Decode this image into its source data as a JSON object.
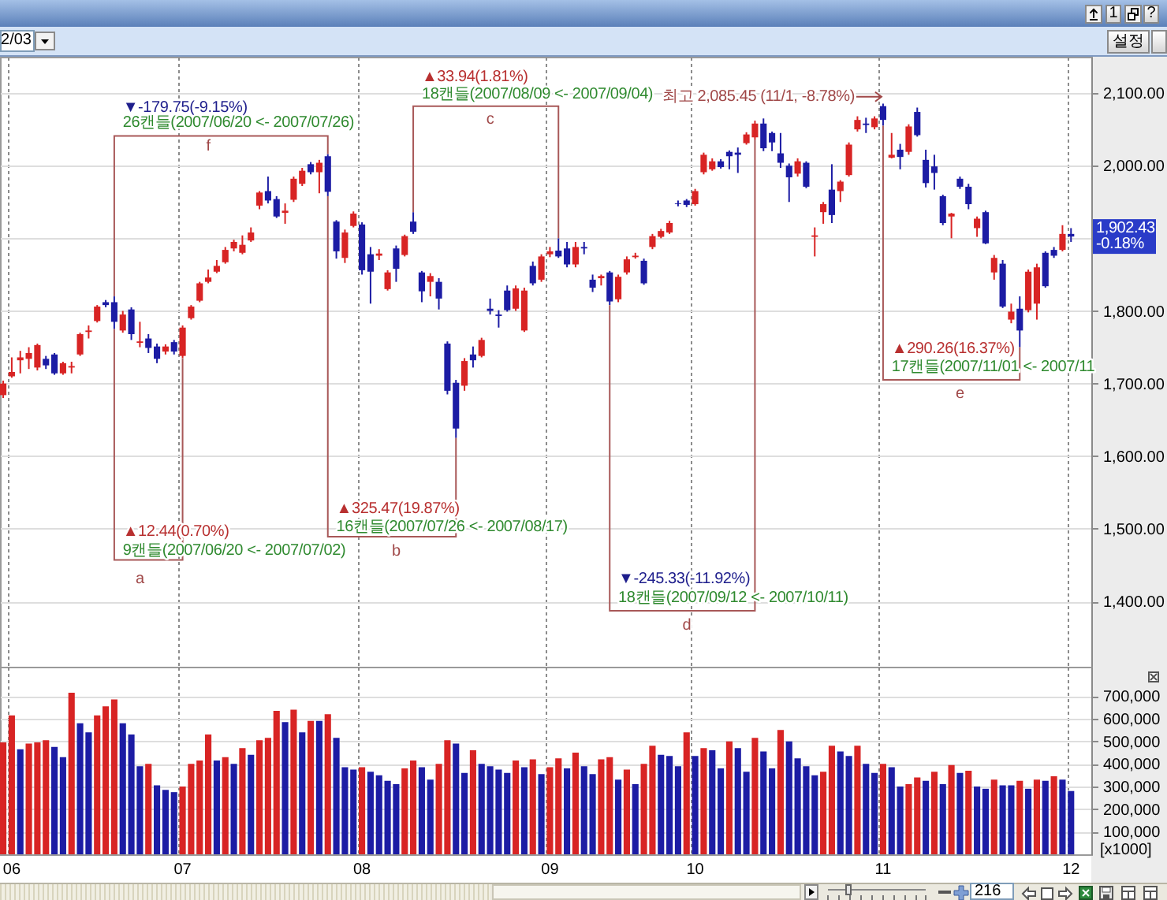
{
  "chart_data": [
    {
      "type": "candlestick",
      "categories": [
        null,
        "06",
        null,
        null,
        null,
        null,
        null,
        null,
        null,
        null,
        null,
        null,
        null,
        null,
        null,
        null,
        null,
        null,
        null,
        null,
        null,
        "07",
        null,
        null,
        null,
        null,
        null,
        null,
        null,
        null,
        null,
        null,
        null,
        null,
        null,
        null,
        null,
        null,
        null,
        null,
        null,
        null,
        "08",
        null,
        null,
        null,
        null,
        null,
        null,
        null,
        null,
        null,
        null,
        null,
        null,
        null,
        null,
        null,
        null,
        null,
        null,
        null,
        null,
        null,
        "09",
        null,
        null,
        null,
        null,
        null,
        null,
        null,
        null,
        null,
        null,
        null,
        null,
        null,
        null,
        null,
        null,
        "10",
        null,
        null,
        null,
        null,
        null,
        null,
        null,
        null,
        null,
        null,
        null,
        null,
        null,
        null,
        null,
        null,
        null,
        null,
        null,
        null,
        null,
        "11",
        null,
        null,
        null,
        null,
        null,
        null,
        null,
        null,
        null,
        null,
        null,
        null,
        null,
        null,
        null,
        null,
        null,
        null,
        null,
        null,
        null,
        "12"
      ],
      "ohlc": [
        [
          1684,
          1704,
          1680,
          1700
        ],
        [
          1710,
          1736,
          1708,
          1716
        ],
        [
          1732,
          1745,
          1714,
          1736
        ],
        [
          1734,
          1750,
          1720,
          1742
        ],
        [
          1722,
          1755,
          1718,
          1753
        ],
        [
          1734,
          1738,
          1720,
          1725
        ],
        [
          1740,
          1742,
          1712,
          1714
        ],
        [
          1714,
          1730,
          1712,
          1728
        ],
        [
          1722,
          1730,
          1714,
          1724
        ],
        [
          1740,
          1770,
          1738,
          1768
        ],
        [
          1771,
          1780,
          1762,
          1773
        ],
        [
          1786,
          1808,
          1784,
          1806
        ],
        [
          1812,
          1815,
          1805,
          1808
        ],
        [
          1812,
          1820,
          1775,
          1785
        ],
        [
          1773,
          1800,
          1770,
          1795
        ],
        [
          1802,
          1805,
          1760,
          1768
        ],
        [
          1756,
          1785,
          1750,
          1758
        ],
        [
          1762,
          1768,
          1742,
          1749
        ],
        [
          1751,
          1755,
          1728,
          1734
        ],
        [
          1744,
          1754,
          1740,
          1751
        ],
        [
          1757,
          1760,
          1740,
          1744
        ],
        [
          1738,
          1780,
          1735,
          1777
        ],
        [
          1790,
          1808,
          1788,
          1806
        ],
        [
          1814,
          1840,
          1812,
          1838
        ],
        [
          1840,
          1857,
          1838,
          1846
        ],
        [
          1854,
          1870,
          1852,
          1862
        ],
        [
          1867,
          1888,
          1865,
          1884
        ],
        [
          1886,
          1898,
          1882,
          1895
        ],
        [
          1880,
          1904,
          1878,
          1891
        ],
        [
          1897,
          1915,
          1895,
          1908
        ],
        [
          1945,
          1965,
          1940,
          1963
        ],
        [
          1965,
          1985,
          1948,
          1952
        ],
        [
          1954,
          1958,
          1928,
          1930
        ],
        [
          1935,
          1948,
          1920,
          1938
        ],
        [
          1953,
          1985,
          1950,
          1982
        ],
        [
          1975,
          1997,
          1972,
          1993
        ],
        [
          2002,
          2005,
          1988,
          1991
        ],
        [
          1991,
          2008,
          1962,
          2004
        ],
        [
          2013,
          2016,
          1958,
          1964
        ],
        [
          1923,
          1925,
          1872,
          1882
        ],
        [
          1873,
          1912,
          1866,
          1908
        ],
        [
          1917,
          1937,
          1915,
          1934
        ],
        [
          1919,
          1922,
          1850,
          1856
        ],
        [
          1878,
          1888,
          1810,
          1854
        ],
        [
          1876,
          1885,
          1870,
          1879
        ],
        [
          1830,
          1856,
          1828,
          1853
        ],
        [
          1886,
          1890,
          1840,
          1858
        ],
        [
          1877,
          1905,
          1875,
          1903
        ],
        [
          1923,
          1936,
          1906,
          1909
        ],
        [
          1853,
          1855,
          1812,
          1827
        ],
        [
          1840,
          1852,
          1820,
          1848
        ],
        [
          1840,
          1845,
          1802,
          1817
        ],
        [
          1755,
          1758,
          1685,
          1690
        ],
        [
          1701,
          1705,
          1625,
          1638
        ],
        [
          1697,
          1735,
          1690,
          1731
        ],
        [
          1740,
          1751,
          1722,
          1732
        ],
        [
          1738,
          1763,
          1736,
          1760
        ],
        [
          1803,
          1817,
          1795,
          1800
        ],
        [
          1795,
          1801,
          1777,
          1793
        ],
        [
          1828,
          1835,
          1799,
          1801
        ],
        [
          1803,
          1835,
          1800,
          1831
        ],
        [
          1773,
          1832,
          1771,
          1828
        ],
        [
          1862,
          1868,
          1835,
          1838
        ],
        [
          1843,
          1878,
          1840,
          1875
        ],
        [
          1878,
          1888,
          1874,
          1882
        ],
        [
          1883,
          1900,
          1873,
          1875
        ],
        [
          1886,
          1895,
          1860,
          1864
        ],
        [
          1864,
          1895,
          1860,
          1888
        ],
        [
          1888,
          1895,
          1878,
          1886
        ],
        [
          1843,
          1850,
          1826,
          1832
        ],
        [
          1845,
          1850,
          1835,
          1848
        ],
        [
          1853,
          1855,
          1808,
          1813
        ],
        [
          1816,
          1850,
          1812,
          1847
        ],
        [
          1853,
          1875,
          1850,
          1871
        ],
        [
          1874,
          1880,
          1872,
          1876
        ],
        [
          1869,
          1872,
          1836,
          1838
        ],
        [
          1888,
          1906,
          1885,
          1903
        ],
        [
          1902,
          1913,
          1900,
          1910
        ],
        [
          1908,
          1924,
          1906,
          1921
        ],
        [
          1948,
          1952,
          1944,
          1947
        ],
        [
          1952,
          1954,
          1943,
          1946
        ],
        [
          1947,
          1968,
          1945,
          1965
        ],
        [
          1991,
          2018,
          1988,
          2015
        ],
        [
          1995,
          2010,
          1993,
          2006
        ],
        [
          2006,
          2009,
          1996,
          1998
        ],
        [
          2019,
          2021,
          1995,
          2013
        ],
        [
          2018,
          2025,
          1990,
          2015
        ],
        [
          2031,
          2046,
          2029,
          2043
        ],
        [
          2039,
          2062,
          2036,
          2058
        ],
        [
          2058,
          2065,
          2020,
          2024
        ],
        [
          2045,
          2047,
          2020,
          2032
        ],
        [
          2017,
          2045,
          1997,
          2004
        ],
        [
          2000,
          2003,
          1950,
          1984
        ],
        [
          1989,
          2010,
          1985,
          2006
        ],
        [
          2004,
          2006,
          1969,
          1971
        ],
        [
          1902,
          1915,
          1875,
          1904
        ],
        [
          1936,
          1950,
          1920,
          1947
        ],
        [
          1967,
          2002,
          1921,
          1932
        ],
        [
          1965,
          1980,
          1950,
          1978
        ],
        [
          1987,
          2032,
          1985,
          2029
        ],
        [
          2050,
          2068,
          2047,
          2063
        ],
        [
          2058,
          2066,
          2045,
          2056
        ],
        [
          2053,
          2068,
          2050,
          2065
        ],
        [
          2082,
          2085.45,
          2055,
          2063
        ],
        [
          2011,
          2045,
          2010,
          2015
        ],
        [
          2022,
          2030,
          1995,
          2012
        ],
        [
          2019,
          2057,
          2015,
          2054
        ],
        [
          2074,
          2080,
          2040,
          2042
        ],
        [
          2008,
          2022,
          1970,
          1976
        ],
        [
          1999,
          2015,
          1967,
          1990
        ],
        [
          1958,
          1960,
          1918,
          1921
        ],
        [
          1930,
          1935,
          1900,
          1934
        ],
        [
          1982,
          1985,
          1968,
          1971
        ],
        [
          1971,
          1975,
          1940,
          1947
        ],
        [
          1914,
          1930,
          1902,
          1927
        ],
        [
          1936,
          1938,
          1892,
          1893
        ],
        [
          1853,
          1877,
          1843,
          1873
        ],
        [
          1865,
          1870,
          1804,
          1806
        ],
        [
          1788,
          1810,
          1783,
          1799
        ],
        [
          1803,
          1820,
          1750,
          1773
        ],
        [
          1801,
          1857,
          1798,
          1854
        ],
        [
          1810,
          1865,
          1788,
          1860
        ],
        [
          1880,
          1882,
          1832,
          1834
        ],
        [
          1884,
          1888,
          1873,
          1876
        ],
        [
          1884,
          1918,
          1882,
          1906
        ],
        [
          1906,
          1914,
          1895,
          1902.43
        ]
      ],
      "colors": [
        "#d82424",
        "#d82424",
        "#d82424",
        "#d82424",
        "#d82424",
        "#1c1ca4",
        "#1c1ca4",
        "#d82424",
        "#d82424",
        "#d82424",
        "#d82424",
        "#d82424",
        "#1c1ca4",
        "#1c1ca4",
        "#d82424",
        "#1c1ca4",
        "#d82424",
        "#1c1ca4",
        "#1c1ca4",
        "#d82424",
        "#1c1ca4",
        "#d82424",
        "#d82424",
        "#d82424",
        "#d82424",
        "#d82424",
        "#d82424",
        "#d82424",
        "#d82424",
        "#d82424",
        "#d82424",
        "#1c1ca4",
        "#1c1ca4",
        "#d82424",
        "#d82424",
        "#d82424",
        "#1c1ca4",
        "#d82424",
        "#1c1ca4",
        "#1c1ca4",
        "#d82424",
        "#d82424",
        "#1c1ca4",
        "#1c1ca4",
        "#d82424",
        "#d82424",
        "#1c1ca4",
        "#d82424",
        "#1c1ca4",
        "#1c1ca4",
        "#d82424",
        "#1c1ca4",
        "#1c1ca4",
        "#1c1ca4",
        "#d82424",
        "#1c1ca4",
        "#d82424",
        "#1c1ca4",
        "#1c1ca4",
        "#1c1ca4",
        "#d82424",
        "#d82424",
        "#1c1ca4",
        "#d82424",
        "#d82424",
        "#1c1ca4",
        "#1c1ca4",
        "#d82424",
        "#1c1ca4",
        "#1c1ca4",
        "#d82424",
        "#1c1ca4",
        "#d82424",
        "#d82424",
        "#d82424",
        "#1c1ca4",
        "#d82424",
        "#d82424",
        "#d82424",
        "#1c1ca4",
        "#1c1ca4",
        "#d82424",
        "#d82424",
        "#d82424",
        "#1c1ca4",
        "#1c1ca4",
        "#1c1ca4",
        "#d82424",
        "#d82424",
        "#1c1ca4",
        "#1c1ca4",
        "#1c1ca4",
        "#1c1ca4",
        "#d82424",
        "#1c1ca4",
        "#d82424",
        "#d82424",
        "#1c1ca4",
        "#d82424",
        "#d82424",
        "#d82424",
        "#1c1ca4",
        "#d82424",
        "#1c1ca4",
        "#d82424",
        "#1c1ca4",
        "#d82424",
        "#1c1ca4",
        "#1c1ca4",
        "#1c1ca4",
        "#1c1ca4",
        "#d82424",
        "#1c1ca4",
        "#1c1ca4",
        "#d82424",
        "#1c1ca4",
        "#d82424",
        "#1c1ca4",
        "#d82424",
        "#1c1ca4",
        "#d82424",
        "#d82424",
        "#1c1ca4",
        "#1c1ca4",
        "#d82424",
        "#1c1ca4"
      ],
      "ylim": [
        1310,
        2150
      ],
      "yticks": [
        {
          "value": 1400,
          "label": "1,400.00"
        },
        {
          "value": 1500,
          "label": "1,500.00"
        },
        {
          "value": 1600,
          "label": "1,600.00"
        },
        {
          "value": 1700,
          "label": "1,700.00"
        },
        {
          "value": 1800,
          "label": "1,800.00"
        },
        {
          "value": 1900,
          "label": null
        },
        {
          "value": 2000,
          "label": "2,000.00"
        },
        {
          "value": 2100,
          "label": "2,100.00"
        }
      ],
      "grid": true,
      "tick_labels": "y",
      "annotations": [
        "▼-179.75(-9.15%)",
        "26캔들(2007/06/20 <- 2007/07/26)",
        "f",
        "▲33.94(1.81%)",
        "18캔들(2007/08/09 <- 2007/09/04)",
        "c",
        "최고 2,085.45 (11/1, -8.78%)",
        "▲12.44(0.70%)",
        "9캔들(2007/06/20 <- 2007/07/02)",
        "a",
        "▲325.47(19.87%)",
        "16캔들(2007/07/26 <- 2007/08/17)",
        "b",
        "▼-245.33(-11.92%)",
        "18캔들(2007/09/12 <- 2007/10/11)",
        "d",
        "▲290.26(16.37%)",
        "17캔들(2007/11/01 <- 2007/11",
        "e",
        {
          "text": "1,902.43",
          "y": 1902.43
        },
        "-0.18%",
        "2/03",
        "1",
        "?",
        "설정"
      ]
    },
    {
      "type": "bar",
      "categories": [
        null,
        "06",
        null,
        null,
        null,
        null,
        null,
        null,
        null,
        null,
        null,
        null,
        null,
        null,
        null,
        null,
        null,
        null,
        null,
        null,
        null,
        "07",
        null,
        null,
        null,
        null,
        null,
        null,
        null,
        null,
        null,
        null,
        null,
        null,
        null,
        null,
        null,
        null,
        null,
        null,
        null,
        null,
        "08",
        null,
        null,
        null,
        null,
        null,
        null,
        null,
        null,
        null,
        null,
        null,
        null,
        null,
        null,
        null,
        null,
        null,
        null,
        null,
        null,
        null,
        "09",
        null,
        null,
        null,
        null,
        null,
        null,
        null,
        null,
        null,
        null,
        null,
        null,
        null,
        null,
        null,
        null,
        "10",
        null,
        null,
        null,
        null,
        null,
        null,
        null,
        null,
        null,
        null,
        null,
        null,
        null,
        null,
        null,
        null,
        null,
        null,
        null,
        null,
        null,
        "11",
        null,
        null,
        null,
        null,
        null,
        null,
        null,
        null,
        null,
        null,
        null,
        null,
        null,
        null,
        null,
        null,
        null,
        null,
        null,
        null,
        null,
        "12"
      ],
      "values": [
        495000,
        615000,
        465000,
        490000,
        495000,
        505000,
        475000,
        430000,
        715000,
        580000,
        540000,
        615000,
        655000,
        685000,
        580000,
        530000,
        390000,
        400000,
        305000,
        285000,
        275000,
        300000,
        400000,
        415000,
        530000,
        415000,
        430000,
        400000,
        470000,
        440000,
        505000,
        515000,
        635000,
        585000,
        640000,
        540000,
        590000,
        590000,
        620000,
        515000,
        385000,
        375000,
        385000,
        365000,
        350000,
        325000,
        310000,
        380000,
        415000,
        385000,
        330000,
        400000,
        505000,
        490000,
        360000,
        460000,
        400000,
        390000,
        375000,
        360000,
        415000,
        385000,
        420000,
        355000,
        385000,
        425000,
        380000,
        450000,
        390000,
        355000,
        420000,
        430000,
        330000,
        375000,
        310000,
        400000,
        480000,
        440000,
        435000,
        390000,
        540000,
        435000,
        470000,
        460000,
        380000,
        500000,
        470000,
        365000,
        515000,
        455000,
        380000,
        550000,
        500000,
        425000,
        390000,
        350000,
        365000,
        480000,
        455000,
        435000,
        480000,
        400000,
        360000,
        400000,
        385000,
        300000,
        310000,
        340000,
        325000,
        365000,
        310000,
        395000,
        360000,
        370000,
        300000,
        290000,
        330000,
        305000,
        305000,
        325000,
        290000,
        330000,
        325000,
        345000,
        330000,
        280000
      ],
      "colors": [
        "#d82424",
        "#d82424",
        "#1c1ca4",
        "#d82424",
        "#d82424",
        "#d82424",
        "#1c1ca4",
        "#1c1ca4",
        "#d82424",
        "#1c1ca4",
        "#1c1ca4",
        "#d82424",
        "#d82424",
        "#d82424",
        "#1c1ca4",
        "#1c1ca4",
        "#1c1ca4",
        "#d82424",
        "#1c1ca4",
        "#1c1ca4",
        "#1c1ca4",
        "#d82424",
        "#d82424",
        "#d82424",
        "#d82424",
        "#1c1ca4",
        "#d82424",
        "#1c1ca4",
        "#d82424",
        "#1c1ca4",
        "#d82424",
        "#d82424",
        "#d82424",
        "#1c1ca4",
        "#d82424",
        "#1c1ca4",
        "#d82424",
        "#1c1ca4",
        "#d82424",
        "#1c1ca4",
        "#1c1ca4",
        "#1c1ca4",
        "#d82424",
        "#1c1ca4",
        "#1c1ca4",
        "#1c1ca4",
        "#1c1ca4",
        "#d82424",
        "#d82424",
        "#1c1ca4",
        "#1c1ca4",
        "#d82424",
        "#d82424",
        "#1c1ca4",
        "#1c1ca4",
        "#d82424",
        "#1c1ca4",
        "#1c1ca4",
        "#1c1ca4",
        "#1c1ca4",
        "#d82424",
        "#1c1ca4",
        "#d82424",
        "#1c1ca4",
        "#d82424",
        "#d82424",
        "#1c1ca4",
        "#d82424",
        "#1c1ca4",
        "#1c1ca4",
        "#d82424",
        "#d82424",
        "#1c1ca4",
        "#d82424",
        "#1c1ca4",
        "#d82424",
        "#d82424",
        "#1c1ca4",
        "#1c1ca4",
        "#1c1ca4",
        "#d82424",
        "#1c1ca4",
        "#d82424",
        "#1c1ca4",
        "#1c1ca4",
        "#d82424",
        "#1c1ca4",
        "#1c1ca4",
        "#d82424",
        "#1c1ca4",
        "#1c1ca4",
        "#d82424",
        "#1c1ca4",
        "#1c1ca4",
        "#1c1ca4",
        "#1c1ca4",
        "#d82424",
        "#d82424",
        "#1c1ca4",
        "#1c1ca4",
        "#d82424",
        "#1c1ca4",
        "#1c1ca4",
        "#d82424",
        "#1c1ca4",
        "#1c1ca4",
        "#d82424",
        "#d82424",
        "#1c1ca4",
        "#d82424",
        "#1c1ca4",
        "#d82424",
        "#1c1ca4",
        "#d82424",
        "#1c1ca4",
        "#1c1ca4",
        "#d82424",
        "#1c1ca4",
        "#1c1ca4",
        "#d82424",
        "#1c1ca4",
        "#d82424",
        "#1c1ca4",
        "#d82424",
        "#1c1ca4",
        "#1c1ca4"
      ],
      "ylim": [
        0,
        830000
      ],
      "yticks": [
        {
          "value": 100000,
          "label": "100,000"
        },
        {
          "value": 200000,
          "label": "200,000"
        },
        {
          "value": 300000,
          "label": "300,000"
        },
        {
          "value": 400000,
          "label": "400,000"
        },
        {
          "value": 500000,
          "label": "500,000"
        },
        {
          "value": 600000,
          "label": "600,000"
        },
        {
          "value": 700000,
          "label": "700,000"
        }
      ],
      "ylabel": "[x1000]",
      "grid": true,
      "annotations": [
        "216"
      ]
    }
  ]
}
